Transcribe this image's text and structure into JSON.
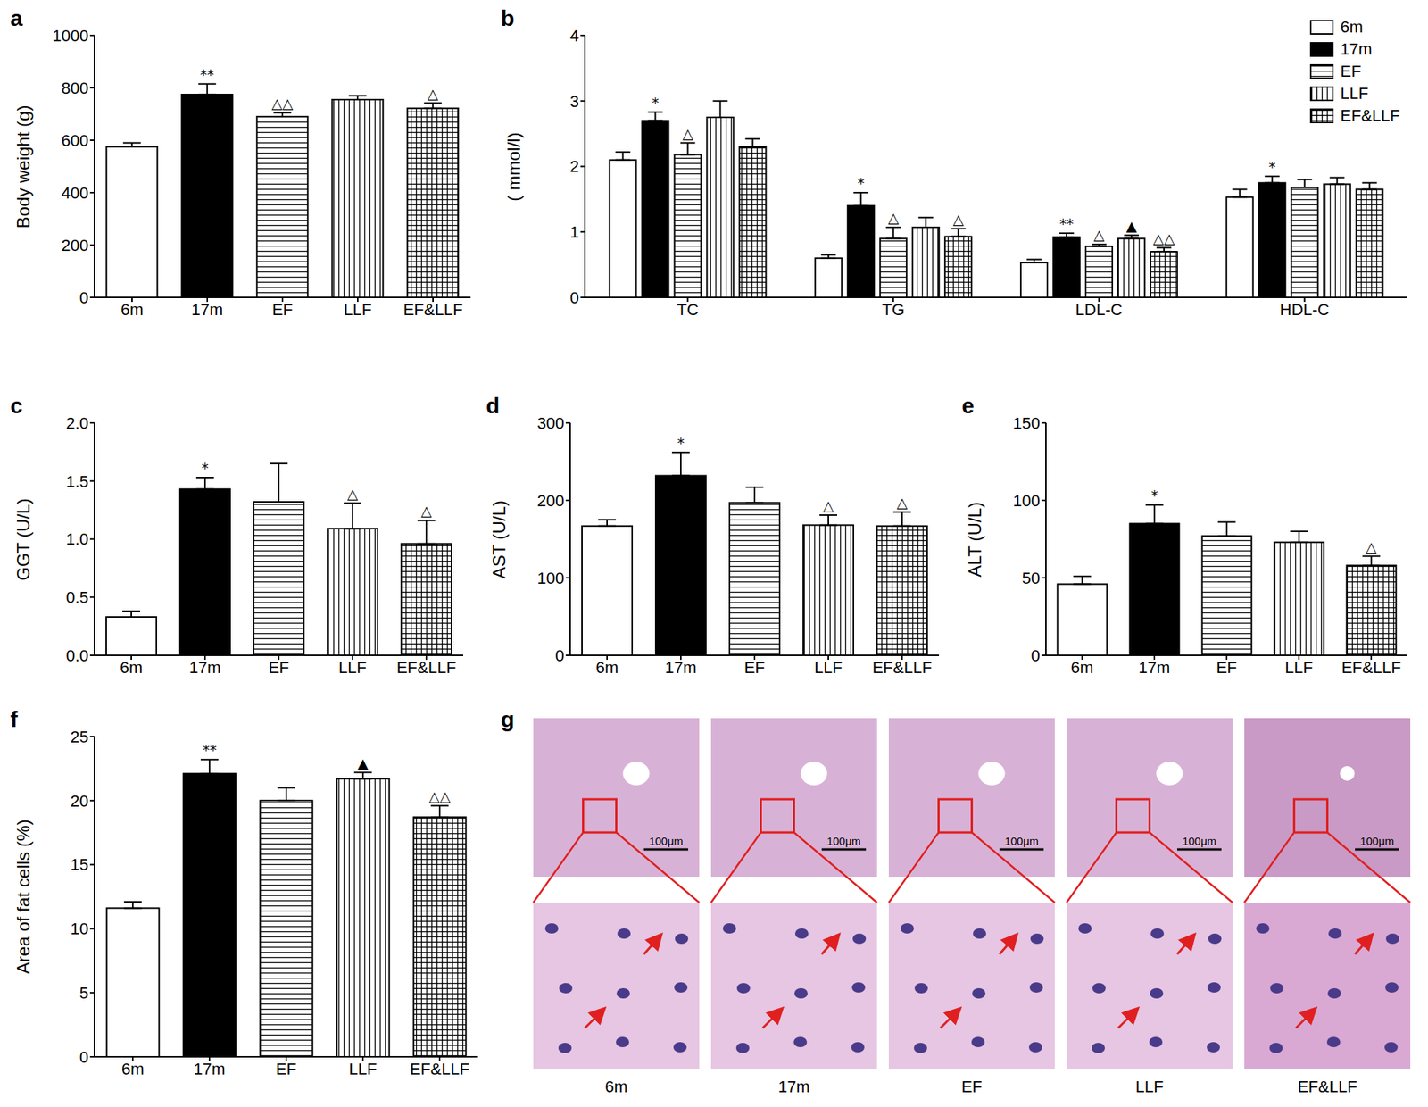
{
  "chart_data": [
    {
      "type": "bar",
      "title": "a",
      "y_label": "Body weight (g)",
      "categories": [
        "6m",
        "17m",
        "EF",
        "LLF",
        "EF&LLF"
      ],
      "values": [
        575,
        775,
        690,
        755,
        722
      ],
      "errors": [
        15,
        40,
        15,
        15,
        20
      ],
      "annotations": [
        null,
        "**",
        "△△",
        null,
        "△"
      ],
      "colors": [
        "#ffffff",
        "#000000",
        "#ffffff",
        "#ffffff",
        "#ffffff"
      ],
      "ylim": [
        0,
        1000
      ],
      "yticks": [
        0,
        200,
        400,
        600,
        800,
        1000
      ]
    },
    {
      "type": "bar",
      "title": "b",
      "y_label": "( mmol/l)",
      "categories": [
        "TC",
        "TG",
        "LDL-C",
        "HDL-C"
      ],
      "series": [
        {
          "name": "6m",
          "color": "#ffffff",
          "values": [
            2.1,
            0.6,
            0.53,
            1.53
          ],
          "errors": [
            0.12,
            0.05,
            0.05,
            0.12
          ],
          "annotations": [
            null,
            null,
            null,
            null
          ]
        },
        {
          "name": "17m",
          "color": "#000000",
          "values": [
            2.7,
            1.4,
            0.92,
            1.75
          ],
          "errors": [
            0.13,
            0.2,
            0.06,
            0.1
          ],
          "annotations": [
            "*",
            "*",
            "**",
            "*"
          ]
        },
        {
          "name": "EF",
          "color": "#ffffff",
          "values": [
            2.18,
            0.9,
            0.78,
            1.68
          ],
          "errors": [
            0.18,
            0.17,
            0.03,
            0.12
          ],
          "annotations": [
            "△",
            "△",
            "△",
            null
          ]
        },
        {
          "name": "LLF",
          "color": "#ffffff",
          "values": [
            2.75,
            1.07,
            0.9,
            1.73
          ],
          "errors": [
            0.25,
            0.15,
            0.05,
            0.1
          ],
          "annotations": [
            null,
            null,
            "▲",
            null
          ]
        },
        {
          "name": "EF&LLF",
          "color": "#ffffff",
          "values": [
            2.3,
            0.93,
            0.7,
            1.65
          ],
          "errors": [
            0.12,
            0.12,
            0.06,
            0.1
          ],
          "annotations": [
            null,
            "△",
            "△△",
            null
          ]
        }
      ],
      "ylim": [
        0,
        4
      ],
      "yticks": [
        0,
        1,
        2,
        3,
        4
      ],
      "legend": "top-right"
    },
    {
      "type": "bar",
      "title": "c",
      "y_label": "GGT (U/L)",
      "categories": [
        "6m",
        "17m",
        "EF",
        "LLF",
        "EF&LLF"
      ],
      "values": [
        0.33,
        1.43,
        1.32,
        1.09,
        0.96
      ],
      "errors": [
        0.05,
        0.1,
        0.33,
        0.22,
        0.2
      ],
      "annotations": [
        null,
        "*",
        null,
        "△",
        "△"
      ],
      "colors": [
        "#ffffff",
        "#000000",
        "#ffffff",
        "#ffffff",
        "#ffffff"
      ],
      "ylim": [
        0,
        2
      ],
      "yticks": [
        {
          "value": 0,
          "label": "0.0"
        },
        0.5,
        {
          "value": 1,
          "label": "1.0"
        },
        1.5,
        {
          "value": 2,
          "label": "2.0"
        }
      ]
    },
    {
      "type": "bar",
      "title": "d",
      "y_label": "AST (U/L)",
      "categories": [
        "6m",
        "17m",
        "EF",
        "LLF",
        "EF&LLF"
      ],
      "values": [
        167,
        232,
        197,
        168,
        167
      ],
      "errors": [
        8,
        30,
        20,
        13,
        18
      ],
      "annotations": [
        null,
        "*",
        null,
        "△",
        "△"
      ],
      "colors": [
        "#ffffff",
        "#000000",
        "#ffffff",
        "#ffffff",
        "#ffffff"
      ],
      "ylim": [
        0,
        300
      ],
      "yticks": [
        0,
        100,
        200,
        300
      ]
    },
    {
      "type": "bar",
      "title": "e",
      "y_label": "ALT (U/L)",
      "categories": [
        "6m",
        "17m",
        "EF",
        "LLF",
        "EF&LLF"
      ],
      "values": [
        46,
        85,
        77,
        73,
        58
      ],
      "errors": [
        5,
        12,
        9,
        7,
        6
      ],
      "annotations": [
        null,
        "*",
        null,
        null,
        "△"
      ],
      "colors": [
        "#ffffff",
        "#000000",
        "#ffffff",
        "#ffffff",
        "#ffffff"
      ],
      "ylim": [
        0,
        150
      ],
      "yticks": [
        0,
        50,
        100,
        150
      ]
    },
    {
      "type": "bar",
      "title": "f",
      "y_label": "Area of fat cells (%)",
      "categories": [
        "6m",
        "17m",
        "EF",
        "LLF",
        "EF&LLF"
      ],
      "values": [
        11.6,
        22.1,
        20,
        21.7,
        18.7
      ],
      "errors": [
        0.5,
        1.1,
        1,
        0.5,
        0.9
      ],
      "annotations": [
        null,
        "**",
        null,
        "▲",
        "△△"
      ],
      "colors": [
        "#ffffff",
        "#000000",
        "#ffffff",
        "#ffffff",
        "#ffffff"
      ],
      "ylim": [
        0,
        25
      ],
      "yticks": [
        0,
        5,
        10,
        15,
        20,
        25
      ]
    }
  ],
  "image_panel": {
    "title": "g",
    "labels": [
      "6m",
      "17m",
      "EF",
      "LLF",
      "EF&LLF"
    ],
    "scale_bar": "100μm"
  }
}
